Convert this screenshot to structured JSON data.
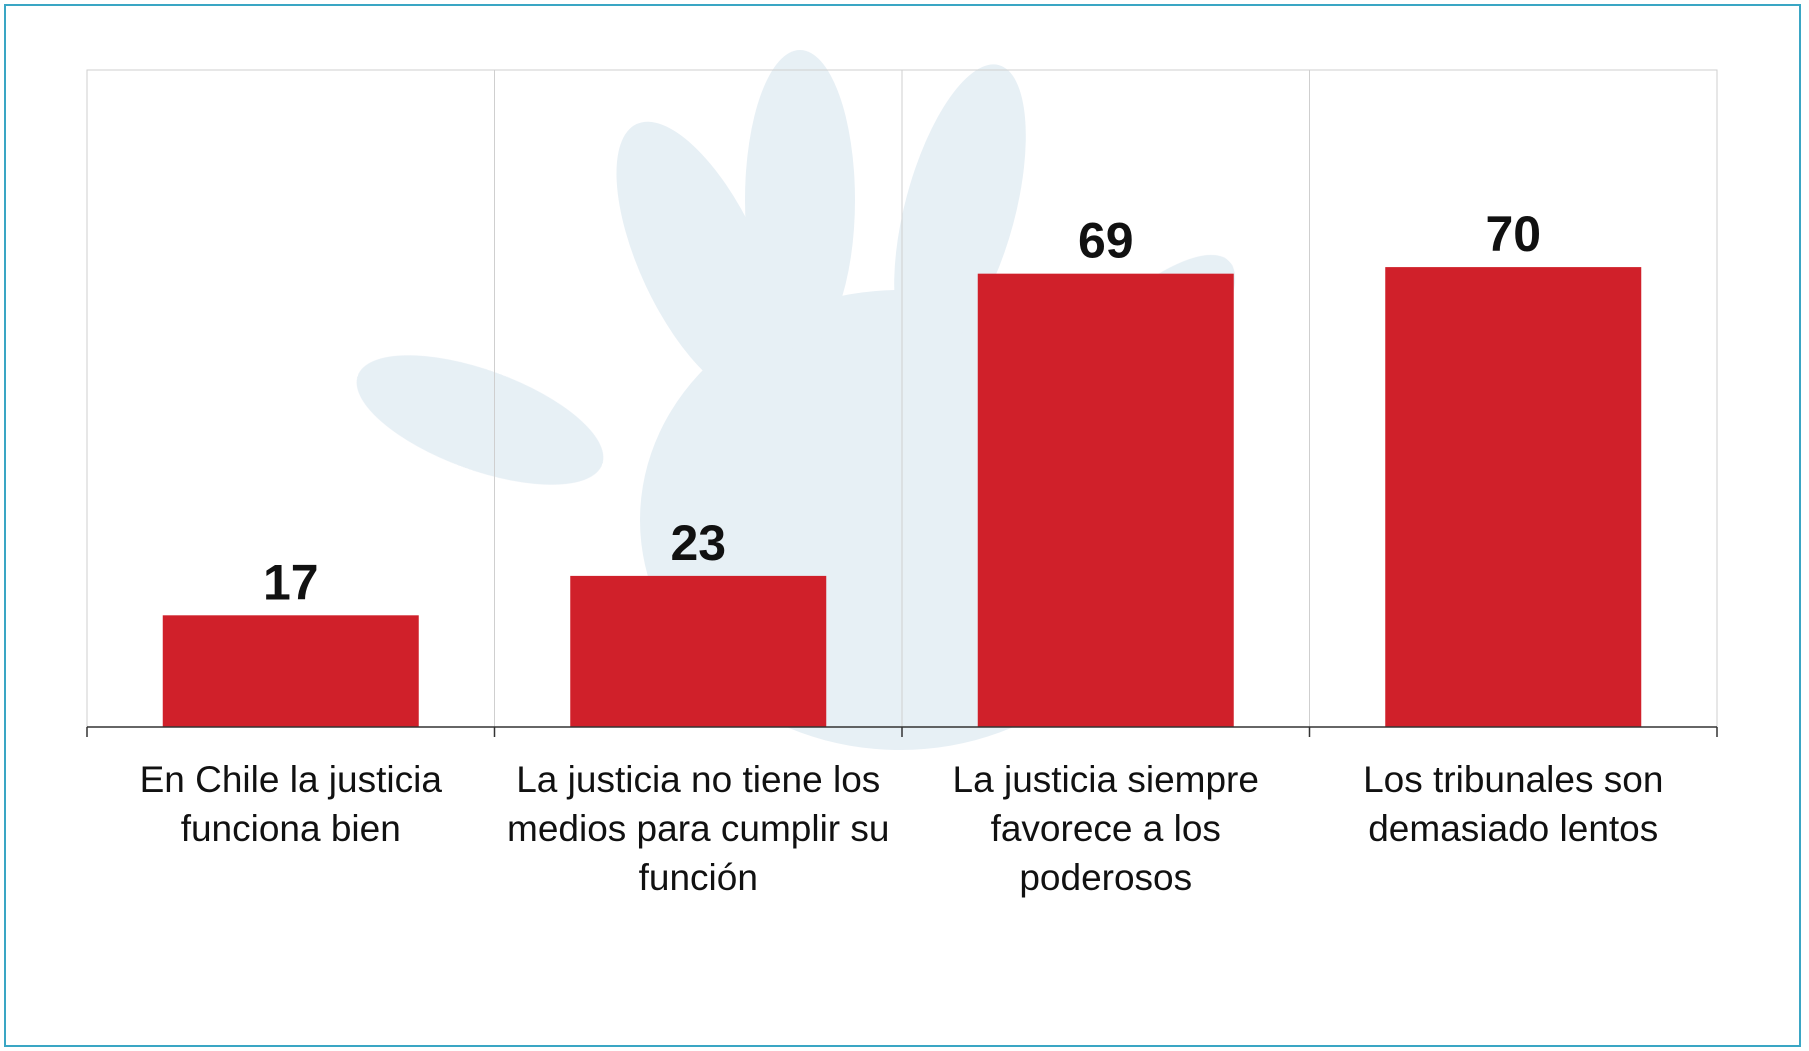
{
  "chart_data": {
    "type": "bar",
    "categories": [
      "En Chile la justicia funciona bien",
      "La justicia no tiene los medios para cumplir su función",
      "La justicia siempre favorece a los poderosos",
      "Los tribunales son demasiado lentos"
    ],
    "values": [
      17,
      23,
      69,
      70
    ],
    "color": "#d0202a",
    "ylim": [
      0,
      100
    ],
    "grid": true
  }
}
